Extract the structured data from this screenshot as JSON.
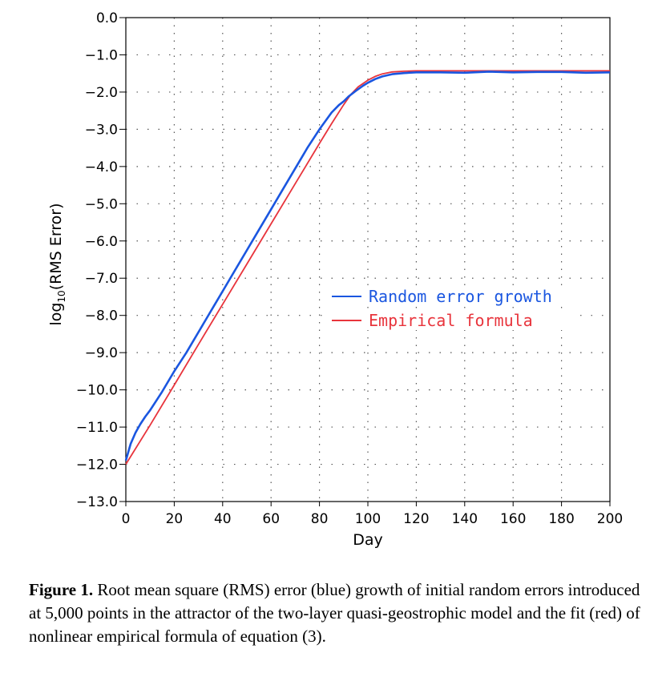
{
  "chart_data": {
    "type": "line",
    "xlabel": "Day",
    "ylabel_prefix": "log",
    "ylabel_sub": "10",
    "ylabel_suffix": "(RMS Error)",
    "xlim": [
      0,
      200
    ],
    "ylim": [
      -13.0,
      0.0
    ],
    "xticks": [
      0,
      20,
      40,
      60,
      80,
      100,
      120,
      140,
      160,
      180,
      200
    ],
    "xtick_labels": [
      "0",
      "20",
      "40",
      "60",
      "80",
      "100",
      "120",
      "140",
      "160",
      "180",
      "200"
    ],
    "yticks": [
      0,
      -1,
      -2,
      -3,
      -4,
      -5,
      -6,
      -7,
      -8,
      -9,
      -10,
      -11,
      -12,
      -13
    ],
    "ytick_labels": [
      "0.0",
      "−1.0",
      "−2.0",
      "−3.0",
      "−4.0",
      "−5.0",
      "−6.0",
      "−7.0",
      "−8.0",
      "−9.0",
      "−10.0",
      "−11.0",
      "−12.0",
      "−13.0"
    ],
    "grid": true,
    "legend_position": "center-right",
    "series": [
      {
        "name": "Random error growth",
        "color": "#1a56e0",
        "x": [
          0,
          2,
          4,
          6,
          8,
          10,
          15,
          20,
          25,
          30,
          35,
          40,
          45,
          50,
          55,
          60,
          65,
          70,
          75,
          80,
          85,
          88,
          90,
          92,
          95,
          98,
          100,
          103,
          106,
          110,
          115,
          120,
          130,
          140,
          150,
          160,
          170,
          180,
          190,
          200
        ],
        "y": [
          -11.9,
          -11.45,
          -11.15,
          -10.92,
          -10.72,
          -10.55,
          -10.05,
          -9.5,
          -9.0,
          -8.45,
          -7.9,
          -7.35,
          -6.8,
          -6.25,
          -5.7,
          -5.15,
          -4.6,
          -4.05,
          -3.5,
          -3.0,
          -2.55,
          -2.35,
          -2.25,
          -2.12,
          -1.97,
          -1.83,
          -1.75,
          -1.65,
          -1.58,
          -1.52,
          -1.49,
          -1.47,
          -1.47,
          -1.48,
          -1.45,
          -1.47,
          -1.46,
          -1.46,
          -1.48,
          -1.47
        ]
      },
      {
        "name": "Empirical formula",
        "color": "#e8343c",
        "x": [
          0,
          10,
          20,
          30,
          40,
          50,
          60,
          70,
          80,
          85,
          90,
          93,
          96,
          100,
          103,
          106,
          110,
          115,
          120,
          130,
          140,
          150,
          160,
          170,
          180,
          190,
          200
        ],
        "y": [
          -12.0,
          -10.95,
          -9.87,
          -8.78,
          -7.7,
          -6.62,
          -5.54,
          -4.46,
          -3.38,
          -2.85,
          -2.34,
          -2.06,
          -1.86,
          -1.68,
          -1.58,
          -1.51,
          -1.46,
          -1.44,
          -1.43,
          -1.43,
          -1.43,
          -1.43,
          -1.43,
          -1.43,
          -1.43,
          -1.43,
          -1.43
        ]
      }
    ]
  },
  "caption": {
    "label": "Figure 1.",
    "text": " Root mean square (RMS) error (blue) growth of initial random errors introduced at 5,000 points in the attractor of the two-layer quasi-geostrophic model and the fit (red) of nonlinear empirical formula of equation (3)."
  }
}
